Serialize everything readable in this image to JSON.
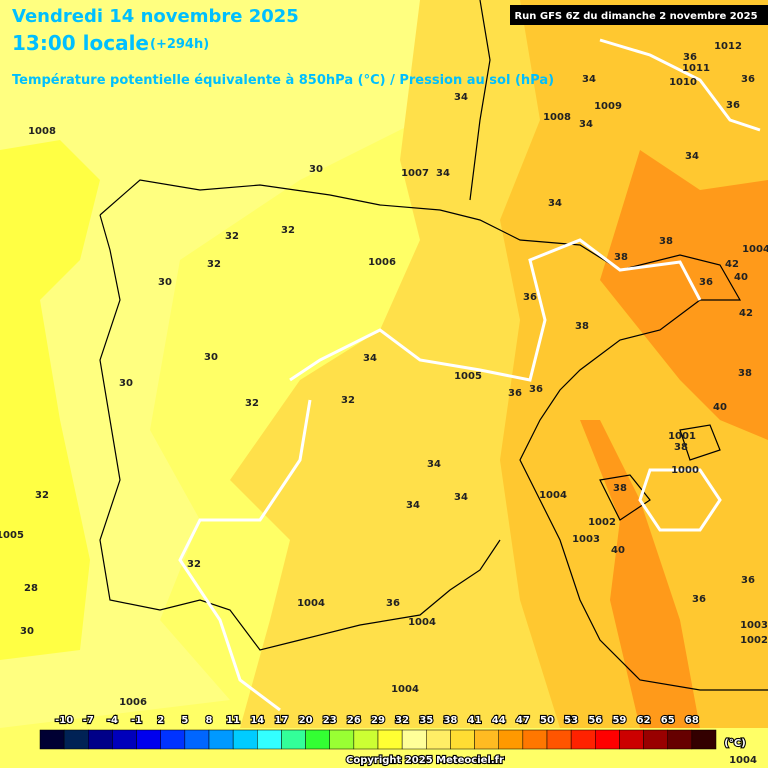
{
  "header": {
    "title": "Vendredi 14 novembre 2025",
    "time": "13:00 locale",
    "offset": "(+294h)",
    "subtitle": "Température potentielle équivalente à 850hPa (°C) / Pression au sol (hPa)",
    "run": "Run GFS 6Z du dimanche 2 novembre 2025"
  },
  "map": {
    "labels": [
      "1008",
      "30",
      "1007",
      "34",
      "34",
      "34",
      "1009",
      "1008",
      "34",
      "36",
      "1011",
      "1012",
      "1010",
      "36",
      "36",
      "34",
      "34",
      "38",
      "38",
      "36",
      "32",
      "32",
      "32",
      "30",
      "1006",
      "36",
      "38",
      "30",
      "34",
      "30",
      "1005",
      "36",
      "36",
      "32",
      "32",
      "38",
      "40",
      "1001",
      "38",
      "1000",
      "34",
      "32",
      "1004",
      "34",
      "34",
      "38",
      "1002",
      "1003",
      "40",
      "32",
      "36",
      "36",
      "1004",
      "36",
      "1004",
      "30",
      "1003",
      "1002",
      "1004",
      "1006",
      "1004",
      "42",
      "40",
      "42",
      "28",
      "1005",
      "1004"
    ]
  },
  "colorbar": {
    "labels": [
      -10,
      -7,
      -4,
      -1,
      2,
      5,
      8,
      11,
      14,
      17,
      20,
      23,
      26,
      29,
      32,
      35,
      38,
      41,
      44,
      47,
      50,
      53,
      56,
      59,
      62,
      65,
      68
    ],
    "colors": [
      "#000033",
      "#002255",
      "#000088",
      "#0000bb",
      "#0000ee",
      "#0033ff",
      "#0066ff",
      "#0099ff",
      "#00ccff",
      "#33ffff",
      "#33ff99",
      "#33ff33",
      "#99ff33",
      "#ccff33",
      "#ffff33",
      "#ffff99",
      "#ffee66",
      "#ffdd33",
      "#ffbb22",
      "#ff9900",
      "#ff7700",
      "#ff5500",
      "#ff2200",
      "#ff0000",
      "#cc0000",
      "#990000",
      "#660000",
      "#330000"
    ],
    "unit": "(°C)"
  },
  "footer": {
    "copyright": "Copyright 2025 Meteociel.fr"
  }
}
